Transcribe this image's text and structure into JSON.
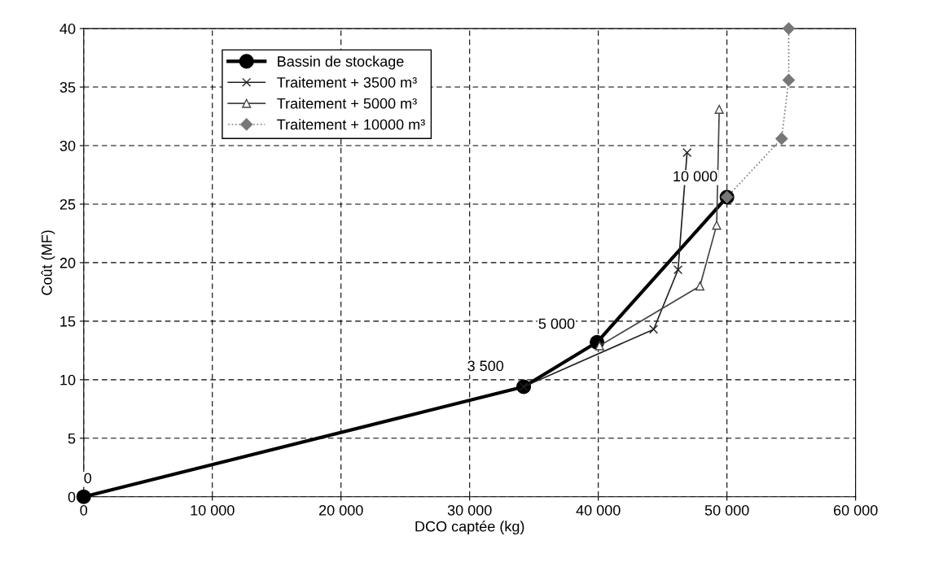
{
  "chart_data": {
    "type": "line",
    "xlabel": "DCO captée (kg)",
    "ylabel": "Coût (MF)",
    "xlim": [
      0,
      60000
    ],
    "xticks": [
      0,
      {
        "value": 10000,
        "label": "10 000"
      },
      {
        "value": 20000,
        "label": "20 000"
      },
      {
        "value": 30000,
        "label": "30 000"
      },
      {
        "value": 40000,
        "label": "40 000"
      },
      {
        "value": 50000,
        "label": "50 000"
      },
      {
        "value": 60000,
        "label": "60 000"
      }
    ],
    "ylim": [
      0,
      40
    ],
    "yticks": [
      0,
      5,
      10,
      15,
      20,
      25,
      30,
      35,
      40
    ],
    "grid": true,
    "legend": "top left",
    "series": [
      {
        "name": "Bassin de stockage",
        "color": "#000000",
        "marker": "circle",
        "line_style": "solid",
        "x": [
          0,
          34200,
          39900,
          50000
        ],
        "values": [
          0,
          9.4,
          13.2,
          25.6
        ]
      },
      {
        "name": "Traitement + 3500 m³",
        "color": "#222222",
        "marker": "cross",
        "line_style": "solid",
        "x": [
          34200,
          44300,
          46200,
          46900
        ],
        "values": [
          9.4,
          14.3,
          19.4,
          29.4
        ]
      },
      {
        "name": "Traitement + 5000 m³",
        "color": "#444444",
        "marker": "triangle",
        "line_style": "solid",
        "x": [
          40100,
          47900,
          49200,
          49400
        ],
        "values": [
          12.9,
          18.0,
          23.2,
          33.1
        ]
      },
      {
        "name": "Traitement + 10000 m³",
        "color": "#777777",
        "marker": "diamond",
        "line_style": "dotted",
        "x": [
          50000,
          54250,
          54800,
          54800
        ],
        "values": [
          25.6,
          30.6,
          35.6,
          40
        ]
      }
    ],
    "annotations": [
      {
        "text": "0",
        "x": 0,
        "y": 0
      },
      {
        "text": "3 500",
        "x": 34200,
        "y": 9.4
      },
      {
        "text": "5 000",
        "x": 39900,
        "y": 13.2
      },
      {
        "text": "10 000",
        "x": 50000,
        "y": 25.6
      }
    ]
  }
}
